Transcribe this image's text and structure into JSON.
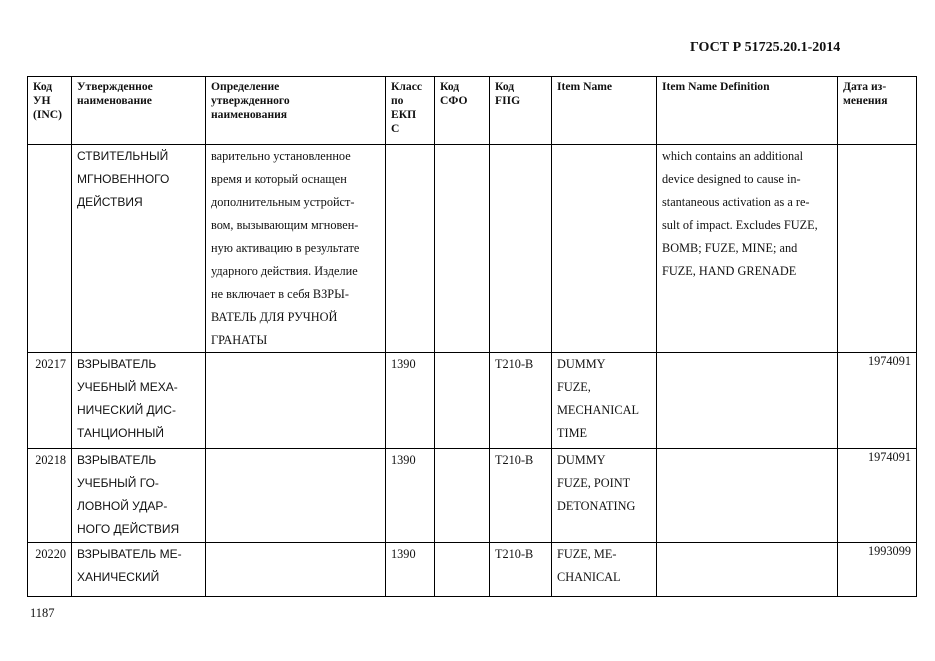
{
  "header": {
    "standard": "ГОСТ Р 51725.20.1-2014"
  },
  "columns": [
    "Код УН (INC)",
    "Утвержденное наименование",
    "Определение утвержденного наименования",
    "Класс по ЕКП С",
    "Код СФО",
    "Код FIIG",
    "Item Name",
    "Item Name Definition",
    "Дата из-менения"
  ],
  "column_lines": [
    [
      "Код",
      "УН",
      "(INC)"
    ],
    [
      "Утвержденное",
      "наименование"
    ],
    [
      "Определение",
      "утвержденного",
      "наименования"
    ],
    [
      "Класс",
      "по",
      "ЕКП",
      "С"
    ],
    [
      "Код",
      "СФО"
    ],
    [
      "Код",
      "FIIG"
    ],
    [
      "Item Name"
    ],
    [
      "Item Name Definition"
    ],
    [
      "Дата из-",
      "менения"
    ]
  ],
  "rows": [
    {
      "inc": "",
      "name": [
        "СТВИТЕЛЬНЫЙ",
        "МГНОВЕННОГО",
        "ДЕЙСТВИЯ"
      ],
      "definition": [
        "варительно установленное",
        "время и который оснащен",
        "дополнительным устройст-",
        "вом, вызывающим мгновен-",
        "ную активацию в результате",
        "ударного действия. Изделие",
        "не включает в себя ВЗРЫ-",
        "ВАТЕЛЬ ДЛЯ РУЧНОЙ",
        "ГРАНАТЫ"
      ],
      "class": "",
      "sfo": "",
      "fiig": "",
      "item_name": [],
      "item_def": [
        "which contains an additional",
        "device designed to cause in-",
        "stantaneous activation as a re-",
        "sult of impact. Excludes FUZE,",
        "BOMB; FUZE, MINE; and",
        "FUZE, HAND GRENADE"
      ],
      "date": ""
    },
    {
      "inc": "20217",
      "name": [
        "ВЗРЫВАТЕЛЬ",
        "УЧЕБНЫЙ МЕХА-",
        "НИЧЕСКИЙ ДИС-",
        "ТАНЦИОННЫЙ"
      ],
      "definition": [],
      "class": "1390",
      "sfo": "",
      "fiig": "T210-B",
      "item_name": [
        "DUMMY",
        "FUZE,",
        "MECHANICAL",
        "TIME"
      ],
      "item_def": [],
      "date": "1974091"
    },
    {
      "inc": "20218",
      "name": [
        "ВЗРЫВАТЕЛЬ",
        "УЧЕБНЫЙ ГО-",
        "ЛОВНОЙ УДАР-",
        "НОГО ДЕЙСТВИЯ"
      ],
      "definition": [],
      "class": "1390",
      "sfo": "",
      "fiig": "T210-B",
      "item_name": [
        "DUMMY",
        "FUZE, POINT",
        "DETONATING"
      ],
      "item_def": [],
      "date": "1974091"
    },
    {
      "inc": "20220",
      "name": [
        "ВЗРЫВАТЕЛЬ МЕ-",
        "ХАНИЧЕСКИЙ"
      ],
      "definition": [],
      "class": "1390",
      "sfo": "",
      "fiig": "T210-B",
      "item_name": [
        "FUZE, ME-",
        "CHANICAL"
      ],
      "item_def": [],
      "date": "1993099"
    }
  ],
  "footer": {
    "page_number": "1187"
  }
}
